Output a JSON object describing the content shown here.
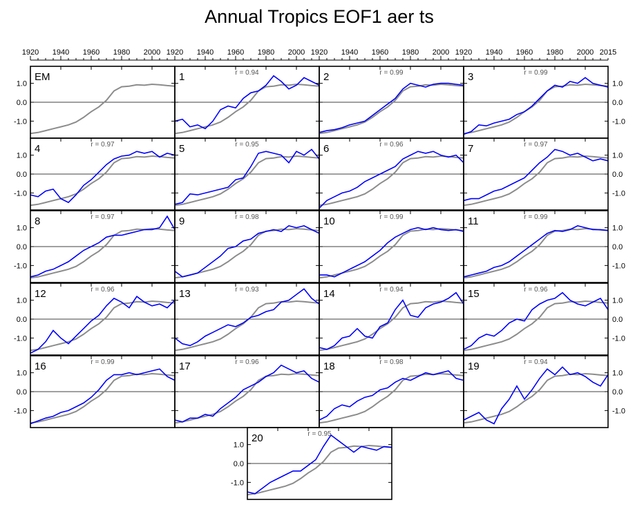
{
  "chart_data": {
    "type": "line",
    "title": "Annual Tropics EOF1 aer ts",
    "xlim": [
      1920,
      2015
    ],
    "ylim": [
      -1.9,
      1.9
    ],
    "x_tick_labels": [
      "1920",
      "1940",
      "1960",
      "1980",
      "2000"
    ],
    "x_tick_label_last": "2015",
    "y_tick_labels": [
      "1.0",
      "0.0",
      "-1.0"
    ],
    "grid": false,
    "colors": {
      "ensemble_mean": "#8c8c8c",
      "member": "#0000ff",
      "zero_line": "#000000"
    },
    "ensemble_mean": {
      "name": "EM",
      "x": [
        1920,
        1925,
        1930,
        1935,
        1940,
        1945,
        1950,
        1955,
        1960,
        1965,
        1970,
        1975,
        1980,
        1985,
        1990,
        1995,
        2000,
        2005,
        2010,
        2015
      ],
      "values": [
        -1.65,
        -1.6,
        -1.5,
        -1.4,
        -1.3,
        -1.2,
        -1.05,
        -0.8,
        -0.5,
        -0.25,
        0.1,
        0.6,
        0.82,
        0.85,
        0.92,
        0.9,
        0.95,
        0.92,
        0.88,
        0.85
      ]
    },
    "panels": [
      {
        "label": "EM",
        "r": ""
      },
      {
        "label": "1",
        "r": "r = 0.94",
        "values": [
          -1.0,
          -0.9,
          -1.3,
          -1.2,
          -1.4,
          -1.0,
          -0.4,
          -0.2,
          -0.3,
          0.2,
          0.5,
          0.6,
          0.9,
          1.4,
          1.1,
          0.7,
          0.9,
          1.3,
          1.1,
          0.9
        ]
      },
      {
        "label": "2",
        "r": "r = 0.99",
        "values": [
          -1.6,
          -1.5,
          -1.45,
          -1.35,
          -1.2,
          -1.1,
          -1.0,
          -0.7,
          -0.4,
          -0.1,
          0.2,
          0.7,
          1.0,
          0.9,
          0.8,
          0.95,
          1.0,
          1.0,
          0.95,
          0.9
        ]
      },
      {
        "label": "3",
        "r": "r = 0.99",
        "values": [
          -1.7,
          -1.55,
          -1.2,
          -1.25,
          -1.1,
          -1.0,
          -0.9,
          -0.65,
          -0.5,
          -0.2,
          0.2,
          0.6,
          0.9,
          0.8,
          1.1,
          1.0,
          1.3,
          1.0,
          0.9,
          0.8
        ]
      },
      {
        "label": "4",
        "r": "r = 0.97",
        "values": [
          -1.1,
          -1.2,
          -0.9,
          -0.8,
          -1.3,
          -1.5,
          -1.1,
          -0.6,
          -0.3,
          0.1,
          0.5,
          0.8,
          0.95,
          1.0,
          1.2,
          1.1,
          1.2,
          0.9,
          1.1,
          1.0
        ]
      },
      {
        "label": "5",
        "r": "r = 0.95",
        "values": [
          -1.6,
          -1.5,
          -1.05,
          -1.1,
          -1.0,
          -0.9,
          -0.8,
          -0.7,
          -0.3,
          -0.2,
          0.4,
          1.1,
          1.2,
          1.1,
          1.0,
          0.6,
          1.2,
          1.0,
          1.3,
          0.8
        ]
      },
      {
        "label": "6",
        "r": "r = 0.96",
        "values": [
          -1.8,
          -1.4,
          -1.2,
          -1.0,
          -0.9,
          -0.7,
          -0.4,
          -0.2,
          0.0,
          0.2,
          0.4,
          0.8,
          1.0,
          1.2,
          1.1,
          1.2,
          1.0,
          0.9,
          1.0,
          0.6
        ]
      },
      {
        "label": "7",
        "r": "r = 0.97",
        "values": [
          -1.4,
          -1.3,
          -1.3,
          -1.1,
          -0.9,
          -0.8,
          -0.6,
          -0.4,
          -0.2,
          0.2,
          0.6,
          0.9,
          1.3,
          1.2,
          1.0,
          1.1,
          0.9,
          0.7,
          0.8,
          0.7
        ]
      },
      {
        "label": "8",
        "r": "r = 0.97",
        "values": [
          -1.6,
          -1.5,
          -1.3,
          -1.2,
          -1.0,
          -0.8,
          -0.5,
          -0.2,
          0.0,
          0.2,
          0.5,
          0.6,
          0.6,
          0.7,
          0.8,
          0.9,
          0.9,
          1.0,
          1.6,
          0.9
        ]
      },
      {
        "label": "9",
        "r": "r = 0.98",
        "values": [
          -1.3,
          -1.6,
          -1.5,
          -1.4,
          -1.1,
          -0.8,
          -0.5,
          -0.1,
          0.0,
          0.3,
          0.4,
          0.7,
          0.8,
          0.9,
          0.8,
          1.1,
          1.0,
          1.1,
          0.9,
          0.7
        ]
      },
      {
        "label": "10",
        "r": "r = 0.99",
        "values": [
          -1.5,
          -1.5,
          -1.6,
          -1.4,
          -1.2,
          -1.0,
          -0.8,
          -0.5,
          -0.2,
          0.2,
          0.5,
          0.7,
          0.9,
          1.0,
          0.9,
          1.0,
          0.9,
          0.85,
          0.9,
          0.8
        ]
      },
      {
        "label": "11",
        "r": "r = 0.99",
        "values": [
          -1.6,
          -1.5,
          -1.4,
          -1.3,
          -1.1,
          -1.0,
          -0.8,
          -0.5,
          -0.2,
          0.1,
          0.4,
          0.7,
          0.85,
          0.8,
          0.9,
          1.1,
          1.0,
          0.9,
          0.9,
          0.85
        ]
      },
      {
        "label": "12",
        "r": "r = 0.96",
        "values": [
          -1.8,
          -1.6,
          -1.2,
          -0.6,
          -1.0,
          -1.3,
          -0.9,
          -0.5,
          -0.1,
          0.2,
          0.7,
          1.1,
          0.9,
          0.6,
          1.2,
          0.9,
          0.7,
          0.8,
          0.6,
          1.0
        ]
      },
      {
        "label": "13",
        "r": "r = 0.93",
        "values": [
          -1.0,
          -1.3,
          -1.4,
          -1.2,
          -0.9,
          -0.7,
          -0.5,
          -0.3,
          -0.4,
          -0.2,
          0.1,
          0.2,
          0.4,
          0.5,
          0.9,
          1.0,
          1.3,
          1.6,
          1.1,
          0.8
        ]
      },
      {
        "label": "14",
        "r": "r = 0.94",
        "values": [
          -1.5,
          -1.6,
          -1.4,
          -1.0,
          -0.9,
          -0.5,
          -0.9,
          -1.0,
          -0.4,
          -0.2,
          0.5,
          1.0,
          0.2,
          0.1,
          0.6,
          0.8,
          0.9,
          1.1,
          1.4,
          0.8
        ]
      },
      {
        "label": "15",
        "r": "r = 0.96",
        "values": [
          -1.6,
          -1.4,
          -1.0,
          -0.8,
          -0.9,
          -0.6,
          -0.2,
          0.0,
          -0.1,
          0.5,
          0.8,
          1.0,
          1.1,
          1.4,
          1.0,
          0.8,
          0.7,
          0.9,
          1.1,
          0.5
        ]
      },
      {
        "label": "16",
        "r": "r = 0.99",
        "values": [
          -1.7,
          -1.55,
          -1.4,
          -1.3,
          -1.1,
          -1.0,
          -0.8,
          -0.6,
          -0.3,
          0.1,
          0.6,
          0.9,
          0.9,
          1.0,
          0.9,
          1.0,
          1.1,
          1.2,
          0.8,
          0.6
        ]
      },
      {
        "label": "17",
        "r": "r = 0.96",
        "values": [
          -1.5,
          -1.6,
          -1.4,
          -1.4,
          -1.2,
          -1.3,
          -0.9,
          -0.6,
          -0.3,
          0.1,
          0.3,
          0.5,
          0.8,
          1.0,
          1.4,
          1.2,
          1.0,
          1.1,
          0.7,
          0.5
        ]
      },
      {
        "label": "18",
        "r": "r = 0.98",
        "values": [
          -1.5,
          -1.3,
          -0.9,
          -0.7,
          -0.8,
          -0.5,
          -0.3,
          -0.2,
          0.1,
          0.2,
          0.5,
          0.7,
          0.6,
          0.8,
          1.0,
          0.9,
          1.0,
          1.1,
          0.7,
          0.6
        ]
      },
      {
        "label": "19",
        "r": "r = 0.94",
        "values": [
          -1.5,
          -1.3,
          -1.1,
          -1.5,
          -1.7,
          -0.9,
          -0.4,
          0.3,
          -0.4,
          0.1,
          0.7,
          1.2,
          0.9,
          1.3,
          0.9,
          1.0,
          0.8,
          0.5,
          0.3,
          0.9
        ]
      },
      {
        "label": "20",
        "r": "r = 0.95",
        "values": [
          -1.5,
          -1.6,
          -1.3,
          -1.0,
          -0.8,
          -0.6,
          -0.4,
          -0.4,
          -0.1,
          0.2,
          0.9,
          1.5,
          1.2,
          0.9,
          0.6,
          0.9,
          0.8,
          0.7,
          0.9,
          0.85
        ]
      }
    ]
  }
}
